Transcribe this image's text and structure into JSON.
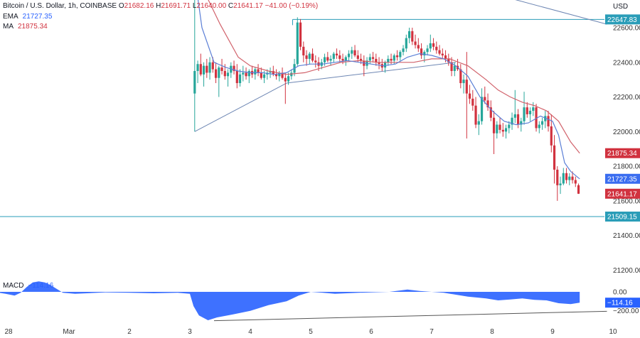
{
  "header": {
    "symbol": "Bitcoin / U.S. Dollar, 1h, COINBASE",
    "open_label": "O",
    "open": "21682.16",
    "high_label": "H",
    "high": "21691.71",
    "low_label": "L",
    "low": "21640.00",
    "close_label": "C",
    "close": "21641.17",
    "change": "−41.00 (−0.19%)",
    "ema_label": "EMA",
    "ema_value": "21727.35",
    "ma_label": "MA",
    "ma_value": "21875.34",
    "macd_label": "MACD",
    "macd_value": "−114.16"
  },
  "currency": "USD",
  "colors": {
    "up": "#26a69a",
    "down": "#d1323f",
    "ema": "#5b7fd6",
    "ma": "#d1626b",
    "level": "#2a9db8",
    "trend": "#6d86b3",
    "macd_fill": "#2962ff",
    "axis_text": "#333333"
  },
  "chart_data": {
    "type": "candlestick",
    "x_tick_labels": [
      "28",
      "Mar",
      "2",
      "3",
      "4",
      "5",
      "6",
      "7",
      "8",
      "9",
      "10"
    ],
    "y_tick_labels": [
      "22600.00",
      "22400.00",
      "22200.00",
      "22000.00",
      "21800.00",
      "21600.00",
      "21400.00",
      "21200.00"
    ],
    "y_ticks": [
      22600,
      22400,
      22200,
      22000,
      21800,
      21600,
      21400,
      21200
    ],
    "ylim": [
      21140,
      22760
    ],
    "xlim": [
      -0.25,
      10.0
    ],
    "horizontal_levels": [
      {
        "label": "22647.83",
        "value": 22647.83
      },
      {
        "label": "21509.15",
        "value": 21509.15
      }
    ],
    "price_badges": [
      {
        "label": "21875.34",
        "value": 21875.34,
        "series": "MA"
      },
      {
        "label": "21727.35",
        "value": 21727.35,
        "series": "EMA"
      },
      {
        "label": "21641.17",
        "value": 21641.17,
        "series": "close"
      }
    ],
    "trendlines": [
      {
        "x": [
          3.08,
          4.6
        ],
        "y": [
          22000,
          22280
        ]
      },
      {
        "x": [
          4.6,
          7.4
        ],
        "y": [
          22280,
          22400
        ]
      },
      {
        "x": [
          5.2,
          9.9
        ],
        "y": [
          23060,
          22620
        ]
      }
    ],
    "level_line_start_x": 4.7,
    "ema_points": [
      [
        3.08,
        22900
      ],
      [
        3.2,
        22600
      ],
      [
        3.4,
        22400
      ],
      [
        3.6,
        22370
      ],
      [
        3.8,
        22350
      ],
      [
        4.0,
        22340
      ],
      [
        4.2,
        22340
      ],
      [
        4.4,
        22330
      ],
      [
        4.6,
        22340
      ],
      [
        4.8,
        22380
      ],
      [
        5.0,
        22390
      ],
      [
        5.2,
        22390
      ],
      [
        5.4,
        22400
      ],
      [
        5.6,
        22410
      ],
      [
        5.8,
        22400
      ],
      [
        6.0,
        22390
      ],
      [
        6.2,
        22380
      ],
      [
        6.4,
        22390
      ],
      [
        6.6,
        22430
      ],
      [
        6.8,
        22450
      ],
      [
        7.0,
        22440
      ],
      [
        7.2,
        22420
      ],
      [
        7.4,
        22380
      ],
      [
        7.6,
        22320
      ],
      [
        7.8,
        22200
      ],
      [
        8.0,
        22120
      ],
      [
        8.2,
        22060
      ],
      [
        8.4,
        22040
      ],
      [
        8.6,
        22050
      ],
      [
        8.8,
        22090
      ],
      [
        9.0,
        22060
      ],
      [
        9.1,
        21980
      ],
      [
        9.2,
        21820
      ],
      [
        9.3,
        21770
      ],
      [
        9.45,
        21727
      ]
    ],
    "ma_points": [
      [
        3.25,
        22800
      ],
      [
        3.5,
        22620
      ],
      [
        3.8,
        22430
      ],
      [
        4.0,
        22380
      ],
      [
        4.3,
        22350
      ],
      [
        4.6,
        22330
      ],
      [
        4.9,
        22340
      ],
      [
        5.2,
        22370
      ],
      [
        5.5,
        22400
      ],
      [
        5.8,
        22410
      ],
      [
        6.1,
        22400
      ],
      [
        6.4,
        22400
      ],
      [
        6.7,
        22400
      ],
      [
        7.0,
        22420
      ],
      [
        7.3,
        22420
      ],
      [
        7.6,
        22380
      ],
      [
        7.9,
        22300
      ],
      [
        8.1,
        22240
      ],
      [
        8.3,
        22200
      ],
      [
        8.5,
        22170
      ],
      [
        8.7,
        22150
      ],
      [
        8.9,
        22120
      ],
      [
        9.1,
        22060
      ],
      [
        9.3,
        21940
      ],
      [
        9.45,
        21875
      ]
    ],
    "candles": [
      [
        3.08,
        22220,
        22830,
        22000,
        22350
      ],
      [
        3.13,
        22350,
        22410,
        22280,
        22390
      ],
      [
        3.18,
        22390,
        22450,
        22320,
        22330
      ],
      [
        3.23,
        22330,
        22400,
        22260,
        22380
      ],
      [
        3.28,
        22380,
        22420,
        22310,
        22340
      ],
      [
        3.33,
        22340,
        22430,
        22300,
        22400
      ],
      [
        3.38,
        22400,
        22430,
        22340,
        22360
      ],
      [
        3.43,
        22360,
        22400,
        22280,
        22310
      ],
      [
        3.48,
        22310,
        22380,
        22200,
        22370
      ],
      [
        3.53,
        22370,
        22420,
        22330,
        22350
      ],
      [
        3.58,
        22350,
        22390,
        22300,
        22320
      ],
      [
        3.63,
        22320,
        22360,
        22260,
        22340
      ],
      [
        3.68,
        22340,
        22400,
        22310,
        22380
      ],
      [
        3.73,
        22380,
        22410,
        22330,
        22350
      ],
      [
        3.78,
        22350,
        22390,
        22250,
        22280
      ],
      [
        3.83,
        22280,
        22360,
        22260,
        22330
      ],
      [
        3.88,
        22330,
        22380,
        22290,
        22340
      ],
      [
        3.93,
        22340,
        22370,
        22300,
        22320
      ],
      [
        3.98,
        22320,
        22360,
        22280,
        22350
      ],
      [
        4.03,
        22350,
        22380,
        22310,
        22330
      ],
      [
        4.08,
        22330,
        22370,
        22300,
        22360
      ],
      [
        4.13,
        22360,
        22390,
        22320,
        22340
      ],
      [
        4.18,
        22340,
        22370,
        22300,
        22310
      ],
      [
        4.23,
        22310,
        22350,
        22280,
        22330
      ],
      [
        4.28,
        22330,
        22360,
        22300,
        22340
      ],
      [
        4.33,
        22340,
        22370,
        22310,
        22350
      ],
      [
        4.38,
        22350,
        22380,
        22320,
        22330
      ],
      [
        4.43,
        22330,
        22360,
        22300,
        22320
      ],
      [
        4.48,
        22320,
        22350,
        22290,
        22340
      ],
      [
        4.53,
        22340,
        22370,
        22300,
        22310
      ],
      [
        4.58,
        22310,
        22340,
        22160,
        22290
      ],
      [
        4.63,
        22290,
        22340,
        22270,
        22320
      ],
      [
        4.68,
        22320,
        22360,
        22300,
        22340
      ],
      [
        4.73,
        22340,
        22420,
        22320,
        22390
      ],
      [
        4.78,
        22390,
        22660,
        22380,
        22630
      ],
      [
        4.83,
        22630,
        22650,
        22470,
        22490
      ],
      [
        4.88,
        22490,
        22520,
        22400,
        22440
      ],
      [
        4.93,
        22440,
        22470,
        22380,
        22420
      ],
      [
        4.98,
        22420,
        22460,
        22390,
        22450
      ],
      [
        5.03,
        22450,
        22480,
        22400,
        22410
      ],
      [
        5.08,
        22410,
        22440,
        22370,
        22400
      ],
      [
        5.13,
        22400,
        22430,
        22350,
        22380
      ],
      [
        5.18,
        22380,
        22420,
        22360,
        22400
      ],
      [
        5.23,
        22400,
        22450,
        22380,
        22430
      ],
      [
        5.28,
        22430,
        22460,
        22400,
        22410
      ],
      [
        5.33,
        22410,
        22440,
        22380,
        22420
      ],
      [
        5.38,
        22420,
        22460,
        22400,
        22450
      ],
      [
        5.43,
        22450,
        22480,
        22420,
        22440
      ],
      [
        5.48,
        22440,
        22470,
        22400,
        22420
      ],
      [
        5.53,
        22420,
        22450,
        22390,
        22410
      ],
      [
        5.58,
        22410,
        22440,
        22380,
        22430
      ],
      [
        5.63,
        22430,
        22470,
        22410,
        22450
      ],
      [
        5.68,
        22450,
        22490,
        22420,
        22470
      ],
      [
        5.73,
        22470,
        22500,
        22430,
        22440
      ],
      [
        5.78,
        22440,
        22470,
        22400,
        22420
      ],
      [
        5.83,
        22420,
        22450,
        22390,
        22410
      ],
      [
        5.88,
        22410,
        22440,
        22320,
        22380
      ],
      [
        5.93,
        22380,
        22430,
        22360,
        22410
      ],
      [
        5.98,
        22410,
        22450,
        22390,
        22430
      ],
      [
        6.03,
        22430,
        22460,
        22400,
        22420
      ],
      [
        6.08,
        22420,
        22450,
        22380,
        22400
      ],
      [
        6.13,
        22400,
        22430,
        22360,
        22390
      ],
      [
        6.18,
        22390,
        22420,
        22350,
        22370
      ],
      [
        6.23,
        22370,
        22410,
        22340,
        22400
      ],
      [
        6.28,
        22400,
        22440,
        22380,
        22420
      ],
      [
        6.33,
        22420,
        22450,
        22390,
        22410
      ],
      [
        6.38,
        22410,
        22450,
        22390,
        22440
      ],
      [
        6.43,
        22440,
        22470,
        22410,
        22430
      ],
      [
        6.48,
        22430,
        22470,
        22410,
        22460
      ],
      [
        6.53,
        22460,
        22500,
        22440,
        22480
      ],
      [
        6.58,
        22480,
        22560,
        22460,
        22540
      ],
      [
        6.63,
        22540,
        22600,
        22510,
        22580
      ],
      [
        6.68,
        22580,
        22600,
        22500,
        22520
      ],
      [
        6.73,
        22520,
        22560,
        22480,
        22500
      ],
      [
        6.78,
        22500,
        22540,
        22460,
        22480
      ],
      [
        6.83,
        22480,
        22510,
        22420,
        22440
      ],
      [
        6.88,
        22440,
        22470,
        22400,
        22460
      ],
      [
        6.93,
        22460,
        22500,
        22440,
        22480
      ],
      [
        6.98,
        22480,
        22560,
        22460,
        22510
      ],
      [
        7.03,
        22510,
        22540,
        22470,
        22490
      ],
      [
        7.08,
        22490,
        22520,
        22450,
        22470
      ],
      [
        7.13,
        22470,
        22500,
        22440,
        22450
      ],
      [
        7.18,
        22450,
        22480,
        22420,
        22440
      ],
      [
        7.23,
        22440,
        22470,
        22400,
        22420
      ],
      [
        7.28,
        22420,
        22450,
        22380,
        22400
      ],
      [
        7.33,
        22400,
        22430,
        22320,
        22350
      ],
      [
        7.38,
        22350,
        22400,
        22320,
        22380
      ],
      [
        7.43,
        22380,
        22420,
        22350,
        22360
      ],
      [
        7.48,
        22360,
        22390,
        22250,
        22280
      ],
      [
        7.53,
        22280,
        22330,
        22220,
        22300
      ],
      [
        7.58,
        22300,
        22460,
        21960,
        22220
      ],
      [
        7.63,
        22220,
        22270,
        22160,
        22190
      ],
      [
        7.68,
        22190,
        22240,
        22120,
        22150
      ],
      [
        7.73,
        22150,
        22200,
        22020,
        22040
      ],
      [
        7.78,
        22040,
        22100,
        21980,
        22060
      ],
      [
        7.83,
        22060,
        22250,
        22040,
        22200
      ],
      [
        7.88,
        22200,
        22260,
        22160,
        22180
      ],
      [
        7.93,
        22180,
        22220,
        22120,
        22140
      ],
      [
        7.98,
        22140,
        22180,
        22060,
        22080
      ],
      [
        8.03,
        22080,
        22120,
        21870,
        21990
      ],
      [
        8.08,
        21990,
        22060,
        21960,
        22040
      ],
      [
        8.13,
        22040,
        22080,
        21990,
        22010
      ],
      [
        8.18,
        22010,
        22050,
        21970,
        22000
      ],
      [
        8.23,
        22000,
        22040,
        21960,
        22020
      ],
      [
        8.28,
        22020,
        22060,
        21990,
        22040
      ],
      [
        8.33,
        22040,
        22110,
        22010,
        22080
      ],
      [
        8.38,
        22080,
        22240,
        22050,
        22100
      ],
      [
        8.43,
        22100,
        22130,
        22020,
        22040
      ],
      [
        8.48,
        22040,
        22080,
        22000,
        22060
      ],
      [
        8.53,
        22060,
        22230,
        22040,
        22140
      ],
      [
        8.58,
        22140,
        22170,
        22080,
        22100
      ],
      [
        8.63,
        22100,
        22140,
        22060,
        22120
      ],
      [
        8.68,
        22120,
        22170,
        22090,
        22140
      ],
      [
        8.73,
        22140,
        22160,
        22000,
        22020
      ],
      [
        8.78,
        22020,
        22060,
        21990,
        22040
      ],
      [
        8.83,
        22040,
        22080,
        22010,
        22060
      ],
      [
        8.88,
        22060,
        22120,
        22020,
        22090
      ],
      [
        8.93,
        22090,
        22120,
        22000,
        22030
      ],
      [
        8.98,
        22030,
        22100,
        21880,
        21920
      ],
      [
        9.03,
        21920,
        21980,
        21700,
        21780
      ],
      [
        9.08,
        21780,
        21800,
        21600,
        21690
      ],
      [
        9.13,
        21690,
        21740,
        21640,
        21700
      ],
      [
        9.18,
        21700,
        21790,
        21690,
        21760
      ],
      [
        9.23,
        21760,
        21790,
        21700,
        21720
      ],
      [
        9.28,
        21720,
        21760,
        21690,
        21740
      ],
      [
        9.33,
        21740,
        21770,
        21700,
        21720
      ],
      [
        9.38,
        21720,
        21740,
        21680,
        21700
      ],
      [
        9.43,
        21690,
        21700,
        21640,
        21641
      ]
    ],
    "macd": {
      "y_tick_labels": [
        "0.00",
        "−200.00"
      ],
      "y_ticks": [
        0,
        -200
      ],
      "ylim": [
        -330,
        120
      ],
      "value_label": "−114.16",
      "value": -114.16,
      "histogram": [
        [
          -0.25,
          0
        ],
        [
          -0.05,
          -20
        ],
        [
          0.1,
          -40
        ],
        [
          0.2,
          -10
        ],
        [
          0.3,
          50
        ],
        [
          0.4,
          100
        ],
        [
          0.5,
          110
        ],
        [
          0.6,
          100
        ],
        [
          0.7,
          70
        ],
        [
          0.8,
          30
        ],
        [
          0.9,
          -10
        ],
        [
          1.1,
          -20
        ],
        [
          1.3,
          -15
        ],
        [
          1.6,
          -5
        ],
        [
          2.0,
          -10
        ],
        [
          2.4,
          -15
        ],
        [
          2.8,
          -10
        ],
        [
          3.0,
          -20
        ],
        [
          3.06,
          -150
        ],
        [
          3.15,
          -250
        ],
        [
          3.3,
          -300
        ],
        [
          3.45,
          -270
        ],
        [
          3.7,
          -240
        ],
        [
          4.0,
          -200
        ],
        [
          4.3,
          -140
        ],
        [
          4.6,
          -100
        ],
        [
          4.8,
          -40
        ],
        [
          5.0,
          0
        ],
        [
          5.2,
          -10
        ],
        [
          5.4,
          -20
        ],
        [
          5.6,
          -15
        ],
        [
          5.8,
          -10
        ],
        [
          6.0,
          -5
        ],
        [
          6.3,
          0
        ],
        [
          6.6,
          25
        ],
        [
          6.8,
          10
        ],
        [
          7.0,
          0
        ],
        [
          7.2,
          -10
        ],
        [
          7.4,
          -30
        ],
        [
          7.6,
          -50
        ],
        [
          7.9,
          -70
        ],
        [
          8.1,
          -90
        ],
        [
          8.3,
          -80
        ],
        [
          8.5,
          -70
        ],
        [
          8.7,
          -85
        ],
        [
          8.9,
          -90
        ],
        [
          9.1,
          -120
        ],
        [
          9.3,
          -130
        ],
        [
          9.45,
          -114
        ],
        [
          9.45,
          0
        ]
      ],
      "divergence_line": {
        "x": [
          3.4,
          9.9
        ],
        "y": [
          -305,
          -205
        ]
      }
    }
  }
}
